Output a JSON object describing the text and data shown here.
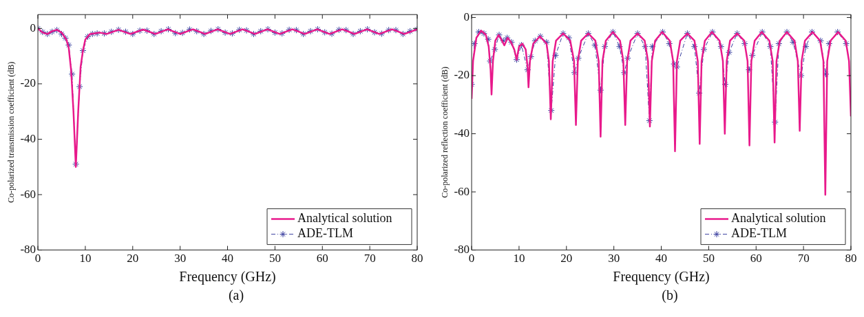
{
  "chart_data": [
    {
      "type": "line",
      "xlabel": "Frequency (GHz)",
      "ylabel": "Co-polarized transmission coefficient (dB)",
      "annotations": [
        "(a)"
      ],
      "xlim": [
        0,
        80
      ],
      "xticks": [
        0,
        10,
        20,
        30,
        40,
        50,
        60,
        70,
        80
      ],
      "ylim": [
        -80,
        5
      ],
      "yticks": [
        -80,
        -60,
        -40,
        -20,
        0
      ],
      "grid": false,
      "legend": "bottom right",
      "series": [
        {
          "name": "Analytical solution",
          "color": "#e8198b",
          "line_style": "solid",
          "marker": "none",
          "x": [
            0,
            1,
            2,
            3,
            4,
            5,
            6,
            6.5,
            7,
            7.5,
            8,
            8.5,
            9,
            9.5,
            10,
            11,
            12,
            13,
            14.5,
            17,
            19.5,
            22.2,
            24.8,
            27.4,
            30,
            32.7,
            35.3,
            37.9,
            40.5,
            43.2,
            45.8,
            48.4,
            51,
            53.7,
            56.3,
            58.9,
            61.5,
            64.2,
            66.8,
            69.4,
            72,
            74.7,
            77.3,
            80
          ],
          "values": [
            0,
            -1.5,
            -2,
            -1,
            -0.5,
            -1.5,
            -4,
            -7,
            -15,
            -30,
            -50,
            -30,
            -14,
            -8,
            -4,
            -2,
            -1.8,
            -1.5,
            -2,
            -0.5,
            -2,
            -0.4,
            -2,
            -0.3,
            -2,
            -0.3,
            -2,
            -0.3,
            -2,
            -0.3,
            -2,
            -0.3,
            -2,
            -0.3,
            -2,
            -0.3,
            -2,
            -0.3,
            -2,
            -0.3,
            -2,
            -0.3,
            -2,
            -0.3
          ]
        },
        {
          "name": "ADE-TLM",
          "color": "#3a3f9f",
          "line_style": "dashed",
          "marker": "cross",
          "x": [
            0,
            1,
            2,
            3,
            4,
            5,
            5.8,
            6.5,
            7.2,
            8,
            8.8,
            9.5,
            10.5,
            11.5,
            12.5,
            14,
            15.5,
            17,
            18.5,
            20,
            21.5,
            23,
            24.5,
            26,
            27.5,
            29,
            30.5,
            32,
            33.5,
            35,
            36.5,
            38,
            39.5,
            41,
            42.5,
            44,
            45.5,
            47,
            48.5,
            50,
            51.5,
            53,
            54.5,
            56,
            57.5,
            59,
            60.5,
            62,
            63.5,
            65,
            66.5,
            68,
            69.5,
            71,
            72.5,
            74,
            75.5,
            77,
            78.5,
            80
          ],
          "values": [
            0,
            -1.3,
            -2,
            -1.2,
            -0.6,
            -2,
            -3.5,
            -6,
            -16.5,
            -49,
            -21,
            -8,
            -3,
            -2,
            -1.8,
            -1.8,
            -1.2,
            -0.5,
            -1.2,
            -2,
            -0.8,
            -0.8,
            -2,
            -1,
            -0.3,
            -1.7,
            -1.6,
            -0.4,
            -1,
            -2,
            -0.9,
            -0.3,
            -1.5,
            -1.8,
            -0.5,
            -0.7,
            -2,
            -1,
            -0.3,
            -1.5,
            -1.8,
            -0.5,
            -0.6,
            -2,
            -1,
            -0.3,
            -1.4,
            -1.9,
            -0.5,
            -0.6,
            -2,
            -1,
            -0.3,
            -1.4,
            -1.9,
            -0.6,
            -0.6,
            -2,
            -1,
            -0.3
          ]
        }
      ]
    },
    {
      "type": "line",
      "xlabel": "Frequency (GHz)",
      "ylabel": "Co-polarized reflection coefficient (dB)",
      "annotations": [
        "(b)"
      ],
      "xlim": [
        0,
        80
      ],
      "xticks": [
        0,
        10,
        20,
        30,
        40,
        50,
        60,
        70,
        80
      ],
      "ylim": [
        -80,
        1
      ],
      "yticks": [
        -80,
        -60,
        -40,
        -20,
        0
      ],
      "grid": false,
      "legend": "bottom right",
      "series": [
        {
          "name": "Analytical solution",
          "color": "#e8198b",
          "line_style": "solid",
          "marker": "none",
          "x": [
            0,
            0.3,
            1,
            2,
            3,
            3.6,
            4,
            4.2,
            4.5,
            5,
            5.7,
            6.4,
            6.9,
            7.6,
            8.3,
            9,
            9.5,
            10,
            10.7,
            11.4,
            11.8,
            12,
            12.3,
            13,
            14.4,
            15.8,
            16.3,
            16.7,
            17.1,
            17.8,
            19.3,
            20.8,
            21.6,
            22,
            22.4,
            23.1,
            24.6,
            26.1,
            26.8,
            27.2,
            27.6,
            28.3,
            29.8,
            31.3,
            32,
            32.4,
            32.8,
            33.5,
            35,
            36.5,
            37.2,
            37.6,
            38,
            38.7,
            40.2,
            41.8,
            42.5,
            42.9,
            43.3,
            44,
            45.5,
            47,
            47.7,
            48.1,
            48.5,
            49.2,
            50.7,
            52.3,
            53,
            53.4,
            53.8,
            54.5,
            56,
            57.5,
            58.2,
            58.6,
            59,
            59.7,
            61.2,
            62.8,
            63.5,
            63.9,
            64.3,
            65,
            66.5,
            68.1,
            68.8,
            69.2,
            69.6,
            70.3,
            71.9,
            73.5,
            74.2,
            74.6,
            75,
            75.7,
            77.3,
            78.9,
            79.6,
            80
          ],
          "values": [
            -28,
            -15,
            -7,
            -4.5,
            -6,
            -10,
            -18,
            -26.5,
            -15,
            -8,
            -6,
            -8,
            -9.6,
            -7,
            -8.5,
            -11,
            -14.5,
            -10,
            -9,
            -11,
            -17,
            -24,
            -15,
            -9,
            -6.5,
            -9,
            -15,
            -35,
            -15,
            -8,
            -5.5,
            -8,
            -15,
            -37,
            -15,
            -8,
            -5.5,
            -8,
            -15,
            -41,
            -15,
            -8,
            -5,
            -8,
            -15,
            -37,
            -15,
            -8,
            -5.5,
            -8,
            -15,
            -37.5,
            -15,
            -8,
            -5,
            -8,
            -15,
            -46,
            -15,
            -8,
            -5.5,
            -8,
            -15,
            -43.5,
            -15,
            -8,
            -5,
            -8,
            -15,
            -40,
            -15,
            -8,
            -5.5,
            -8,
            -15,
            -44,
            -15,
            -8,
            -5,
            -8,
            -15,
            -43,
            -15,
            -8,
            -5,
            -8,
            -15,
            -39,
            -15,
            -8,
            -5,
            -8,
            -15,
            -61,
            -15,
            -8,
            -5,
            -8,
            -15,
            -34
          ]
        },
        {
          "name": "ADE-TLM",
          "color": "#3a3f9f",
          "line_style": "dashed",
          "marker": "cross",
          "x": [
            0,
            0.6,
            1.5,
            2.6,
            3.5,
            3.9,
            4.9,
            5.8,
            6.7,
            7.5,
            8.4,
            9.5,
            10.5,
            11.8,
            12.5,
            13.4,
            14.5,
            15.8,
            16.8,
            17.7,
            19.3,
            20.5,
            21.7,
            22.5,
            24.6,
            26,
            27.2,
            28.1,
            29.8,
            31.2,
            32.2,
            32.9,
            35,
            36.6,
            37.5,
            38.1,
            40.3,
            41.7,
            42.7,
            43.3,
            45.5,
            47,
            48,
            49,
            50.8,
            52.6,
            53.5,
            54.3,
            56,
            57.6,
            58.5,
            59.2,
            61.3,
            63,
            64,
            64.8,
            66.5,
            67.8,
            69.5,
            70.5,
            71.8,
            73.6,
            74.7,
            75.4,
            77.2,
            79
          ],
          "values": [
            -23,
            -9,
            -5,
            -5.5,
            -7.5,
            -15,
            -11,
            -6,
            -8,
            -7,
            -8.5,
            -14.5,
            -9.5,
            -18,
            -13.5,
            -8,
            -6.5,
            -8.5,
            -32,
            -13,
            -5.5,
            -7,
            -19,
            -14,
            -5.5,
            -9.5,
            -25,
            -10,
            -5,
            -10,
            -19,
            -14,
            -5.5,
            -10,
            -35.5,
            -10,
            -5,
            -9,
            -16,
            -17,
            -5.5,
            -10,
            -26,
            -11,
            -5,
            -10,
            -23,
            -12,
            -5.5,
            -9,
            -18,
            -13,
            -5,
            -10,
            -36,
            -9,
            -5,
            -8.5,
            -20,
            -10,
            -5,
            -8,
            -19.5,
            -9,
            -5,
            -9
          ]
        }
      ]
    }
  ]
}
